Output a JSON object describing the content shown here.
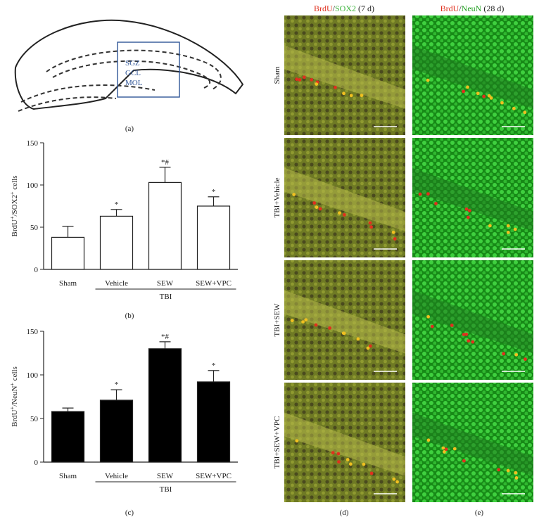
{
  "panels": {
    "a": {
      "letter": "(a)",
      "regions": [
        "SGZ",
        "GCL",
        "MOL"
      ]
    },
    "b": {
      "letter": "(b)"
    },
    "c": {
      "letter": "(c)"
    },
    "d": {
      "letter": "(d)",
      "header": {
        "brdu": "BrdU",
        "slash": "/",
        "marker": "SOX2",
        "time": " (7 d)"
      }
    },
    "e": {
      "letter": "(e)",
      "header": {
        "brdu": "BrdU",
        "slash": "/",
        "marker": "NeuN",
        "time": " (28 d)"
      }
    }
  },
  "row_labels": [
    "Sham",
    "TBI+Vehicle",
    "TBI+SEW",
    "TBI+SEW+VPC"
  ],
  "colors": {
    "brdu": "#e0301e",
    "sox2": "#3cb43c",
    "neun": "#22a022",
    "bar_b": "#ffffff",
    "bar_c": "#000000"
  },
  "chart_data": [
    {
      "type": "bar",
      "panel": "b",
      "categories": [
        "Sham",
        "Vehicle",
        "SEW",
        "SEW+VPC"
      ],
      "group_label": "TBI",
      "values": [
        38,
        63,
        103,
        75
      ],
      "errors": [
        13,
        8,
        18,
        11
      ],
      "significance": [
        "",
        "*",
        "*#",
        "*"
      ],
      "ylabel_parts": [
        "BrdU",
        "+",
        "/SOX2",
        "+",
        " cells"
      ],
      "ylim": [
        0,
        150
      ],
      "yticks": [
        "0",
        "50",
        "100",
        "150"
      ],
      "ytick_values": [
        0,
        50,
        100,
        150
      ]
    },
    {
      "type": "bar",
      "panel": "c",
      "categories": [
        "Sham",
        "Vehicle",
        "SEW",
        "SEW+VPC"
      ],
      "group_label": "TBI",
      "values": [
        58,
        71,
        130,
        92
      ],
      "errors": [
        4,
        12,
        8,
        13
      ],
      "significance": [
        "",
        "*",
        "*#",
        "*"
      ],
      "ylabel_parts": [
        "BrdU",
        "+",
        "/NeuN",
        "+",
        " cells"
      ],
      "ylim": [
        0,
        150
      ],
      "yticks": [
        "0",
        "50",
        "100",
        "150"
      ],
      "ytick_values": [
        0,
        50,
        100,
        150
      ]
    }
  ]
}
